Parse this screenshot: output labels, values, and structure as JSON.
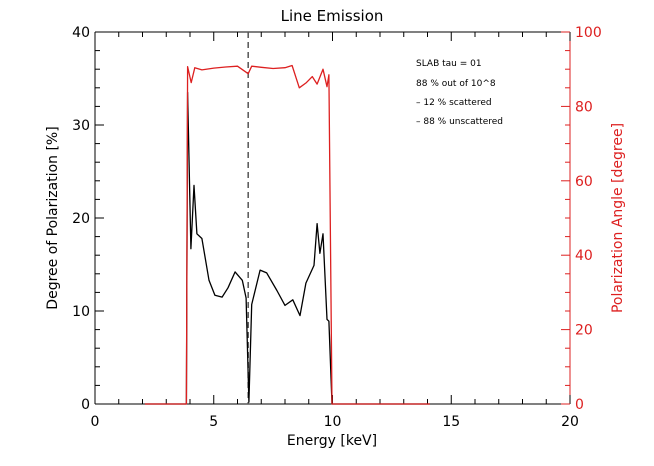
{
  "chart_data": {
    "type": "line",
    "title": "Line Emission",
    "xlabel": "Energy [keV]",
    "ylabel": "Degree of Polarization [%]",
    "ylabel_right": "Polarization Angle [degree]",
    "xlim": [
      0,
      20
    ],
    "ylim": [
      0,
      40
    ],
    "ylim_right": [
      0,
      100
    ],
    "xticks": [
      "0",
      "5",
      "10",
      "15",
      "20"
    ],
    "yticks": [
      "0",
      "10",
      "20",
      "30",
      "40"
    ],
    "yticks_right": [
      "0",
      "20",
      "40",
      "60",
      "80",
      "100"
    ],
    "grid": false,
    "annotations": [
      "SLAB tau = 01",
      "88 % out of 10^8",
      "– 12 % scattered",
      "– 88 % unscattered"
    ],
    "reference_line": {
      "x": 6.45,
      "style": "dashed"
    },
    "series": [
      {
        "name": "Degree of Polarization",
        "axis": "left",
        "color": "#000000",
        "x": [
          2.1,
          3.85,
          3.9,
          4.04,
          4.17,
          4.29,
          4.5,
          4.8,
          5.05,
          5.35,
          5.6,
          5.9,
          6.2,
          6.36,
          6.48,
          6.6,
          6.95,
          7.23,
          7.66,
          8.0,
          8.33,
          8.63,
          8.88,
          9.22,
          9.35,
          9.47,
          9.6,
          9.77,
          9.85,
          9.98,
          14.1
        ],
        "y": [
          0,
          0,
          33.5,
          16.7,
          23.5,
          18.3,
          17.8,
          13.3,
          11.7,
          11.5,
          12.5,
          14.2,
          13.3,
          11.4,
          0.2,
          10.7,
          14.4,
          14.1,
          12.2,
          10.6,
          11.2,
          9.5,
          13.0,
          14.9,
          19.4,
          16.2,
          18.3,
          9.1,
          8.9,
          0,
          0
        ]
      },
      {
        "name": "Polarization Angle",
        "axis": "right",
        "color": "#dd2020",
        "x": [
          2.1,
          3.85,
          3.9,
          4.05,
          4.2,
          4.5,
          5.0,
          5.5,
          6.0,
          6.45,
          6.6,
          7.0,
          7.5,
          8.0,
          8.3,
          8.6,
          8.9,
          9.15,
          9.35,
          9.6,
          9.77,
          9.85,
          9.98,
          14.1
        ],
        "y": [
          0,
          0,
          90.7,
          86.4,
          90.4,
          89.8,
          90.3,
          90.6,
          90.8,
          88.8,
          90.8,
          90.5,
          90.2,
          90.4,
          91,
          85,
          86.4,
          88,
          86,
          90,
          85.3,
          88.5,
          0,
          0
        ]
      }
    ]
  }
}
